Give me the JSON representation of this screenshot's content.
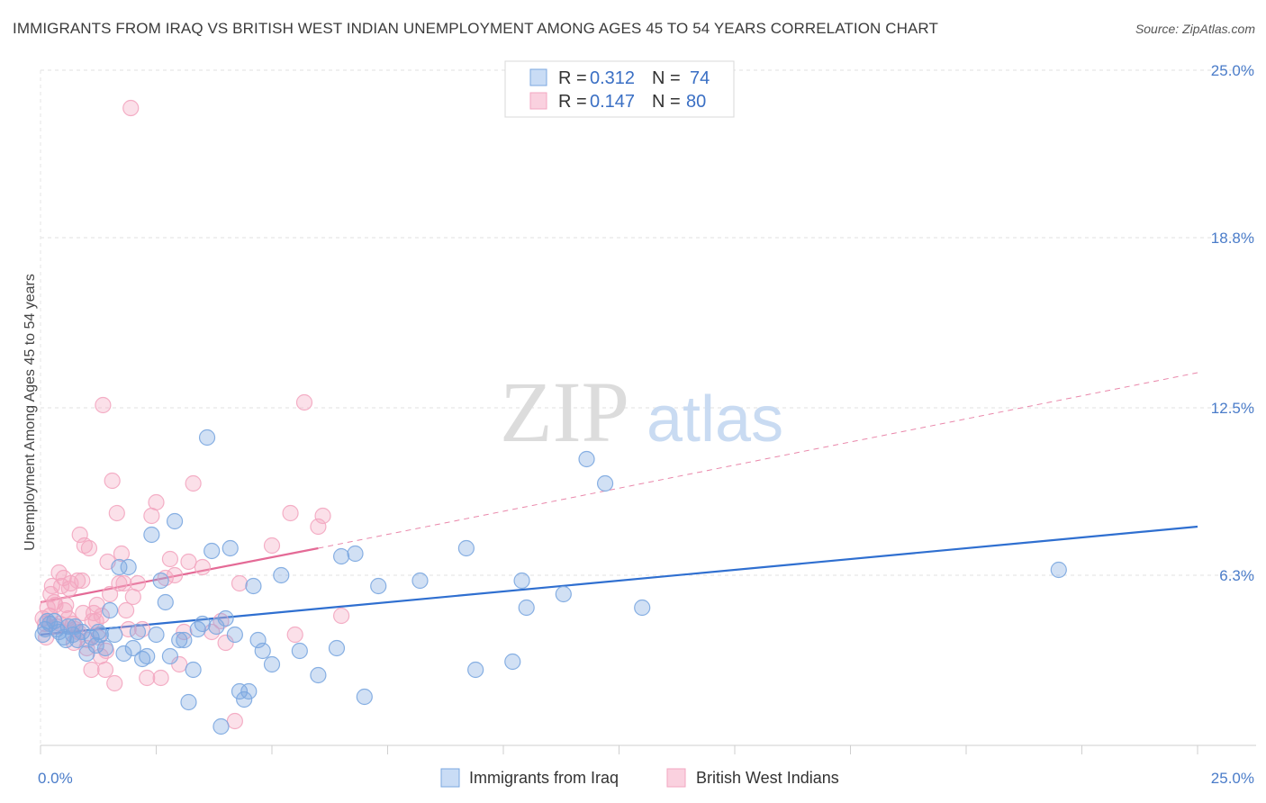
{
  "header": {
    "title": "IMMIGRANTS FROM IRAQ VS BRITISH WEST INDIAN UNEMPLOYMENT AMONG AGES 45 TO 54 YEARS CORRELATION CHART",
    "source": "Source: ZipAtlas.com"
  },
  "watermark": {
    "zip": "ZIP",
    "atlas": "atlas"
  },
  "colors": {
    "blue": "#7ba7e0",
    "blue_line": "#2f6fd0",
    "pink": "#f3a6c0",
    "pink_line": "#e46a96",
    "tick": "#4a7cc9"
  },
  "chart_data": {
    "type": "scatter",
    "title": "IMMIGRANTS FROM IRAQ VS BRITISH WEST INDIAN UNEMPLOYMENT AMONG AGES 45 TO 54 YEARS CORRELATION CHART",
    "xlabel": "",
    "ylabel": "Unemployment Among Ages 45 to 54 years",
    "xlim": [
      0,
      25
    ],
    "ylim": [
      0,
      25
    ],
    "x_tick_labels": [
      "0.0%",
      "25.0%"
    ],
    "y_tick_values": [
      6.3,
      12.5,
      18.8,
      25.0
    ],
    "y_tick_labels": [
      "6.3%",
      "12.5%",
      "18.8%",
      "25.0%"
    ],
    "legend_top": {
      "r_label": "R =",
      "n_label": "N =",
      "entries": [
        {
          "series": "Immigrants from Iraq",
          "r": "0.312",
          "n": "74"
        },
        {
          "series": "British West Indians",
          "r": "0.147",
          "n": "80"
        }
      ]
    },
    "series": [
      {
        "name": "Immigrants from Iraq",
        "color": "#7ba7e0",
        "trend": {
          "x": [
            0,
            25
          ],
          "y": [
            4.1,
            8.1
          ],
          "dashed_after": null
        },
        "points": [
          [
            0.1,
            4.3
          ],
          [
            0.2,
            4.5
          ],
          [
            0.3,
            4.6
          ],
          [
            0.4,
            4.2
          ],
          [
            0.5,
            4.0
          ],
          [
            0.6,
            4.4
          ],
          [
            0.7,
            4.1
          ],
          [
            0.8,
            3.9
          ],
          [
            0.9,
            4.2
          ],
          [
            1.0,
            3.4
          ],
          [
            1.1,
            4.0
          ],
          [
            1.2,
            3.7
          ],
          [
            1.3,
            4.1
          ],
          [
            1.4,
            3.6
          ],
          [
            1.5,
            5.0
          ],
          [
            1.6,
            4.1
          ],
          [
            1.7,
            6.6
          ],
          [
            1.8,
            3.4
          ],
          [
            1.9,
            6.6
          ],
          [
            2.0,
            3.6
          ],
          [
            2.1,
            4.2
          ],
          [
            2.2,
            3.2
          ],
          [
            2.3,
            3.3
          ],
          [
            2.4,
            7.8
          ],
          [
            2.5,
            4.1
          ],
          [
            2.6,
            6.1
          ],
          [
            2.7,
            5.3
          ],
          [
            2.8,
            3.3
          ],
          [
            2.9,
            8.3
          ],
          [
            3.0,
            3.9
          ],
          [
            3.1,
            3.9
          ],
          [
            3.2,
            1.6
          ],
          [
            3.3,
            2.8
          ],
          [
            3.4,
            4.3
          ],
          [
            3.5,
            4.5
          ],
          [
            3.6,
            11.4
          ],
          [
            3.7,
            7.2
          ],
          [
            3.8,
            4.4
          ],
          [
            3.9,
            0.7
          ],
          [
            4.0,
            4.7
          ],
          [
            4.1,
            7.3
          ],
          [
            4.2,
            4.1
          ],
          [
            4.3,
            2.0
          ],
          [
            4.4,
            1.7
          ],
          [
            4.5,
            2.0
          ],
          [
            4.6,
            5.9
          ],
          [
            4.7,
            3.9
          ],
          [
            4.8,
            3.5
          ],
          [
            5.0,
            3.0
          ],
          [
            5.2,
            6.3
          ],
          [
            5.6,
            3.5
          ],
          [
            6.0,
            2.6
          ],
          [
            6.4,
            3.6
          ],
          [
            6.5,
            7.0
          ],
          [
            6.8,
            7.1
          ],
          [
            7.0,
            1.8
          ],
          [
            7.3,
            5.9
          ],
          [
            8.2,
            6.1
          ],
          [
            9.2,
            7.3
          ],
          [
            9.4,
            2.8
          ],
          [
            10.2,
            3.1
          ],
          [
            10.4,
            6.1
          ],
          [
            10.5,
            5.1
          ],
          [
            11.3,
            5.6
          ],
          [
            11.8,
            10.6
          ],
          [
            12.2,
            9.7
          ],
          [
            13.0,
            5.1
          ],
          [
            22.0,
            6.5
          ],
          [
            0.05,
            4.1
          ],
          [
            0.15,
            4.6
          ],
          [
            0.35,
            4.3
          ],
          [
            0.55,
            3.9
          ],
          [
            0.75,
            4.4
          ],
          [
            1.25,
            4.2
          ]
        ]
      },
      {
        "name": "British West Indians",
        "color": "#f3a6c0",
        "trend": {
          "x": [
            0,
            6.0
          ],
          "y": [
            5.3,
            7.3
          ],
          "dash_x": [
            6.0,
            25
          ],
          "dash_y": [
            7.3,
            13.8
          ]
        },
        "points": [
          [
            0.1,
            4.5
          ],
          [
            0.15,
            5.1
          ],
          [
            0.2,
            4.8
          ],
          [
            0.25,
            5.9
          ],
          [
            0.3,
            5.3
          ],
          [
            0.35,
            4.4
          ],
          [
            0.4,
            6.4
          ],
          [
            0.45,
            5.9
          ],
          [
            0.5,
            6.2
          ],
          [
            0.55,
            5.2
          ],
          [
            0.6,
            4.7
          ],
          [
            0.65,
            6.0
          ],
          [
            0.7,
            4.5
          ],
          [
            0.75,
            4.3
          ],
          [
            0.8,
            6.1
          ],
          [
            0.85,
            7.8
          ],
          [
            0.9,
            6.1
          ],
          [
            0.95,
            7.4
          ],
          [
            1.0,
            3.6
          ],
          [
            1.05,
            7.3
          ],
          [
            1.1,
            2.8
          ],
          [
            1.15,
            4.9
          ],
          [
            1.2,
            4.6
          ],
          [
            1.25,
            4.0
          ],
          [
            1.3,
            3.3
          ],
          [
            1.35,
            12.6
          ],
          [
            1.4,
            2.8
          ],
          [
            1.45,
            6.8
          ],
          [
            1.5,
            5.6
          ],
          [
            1.55,
            9.8
          ],
          [
            1.6,
            2.3
          ],
          [
            1.65,
            8.6
          ],
          [
            1.7,
            6.0
          ],
          [
            1.75,
            7.1
          ],
          [
            1.8,
            6.0
          ],
          [
            1.85,
            5.0
          ],
          [
            1.9,
            4.3
          ],
          [
            1.95,
            23.6
          ],
          [
            2.0,
            5.5
          ],
          [
            2.1,
            6.0
          ],
          [
            2.2,
            4.3
          ],
          [
            2.3,
            2.5
          ],
          [
            2.4,
            8.5
          ],
          [
            2.5,
            9.0
          ],
          [
            2.6,
            2.5
          ],
          [
            2.7,
            6.2
          ],
          [
            2.8,
            6.9
          ],
          [
            2.9,
            6.3
          ],
          [
            3.0,
            3.0
          ],
          [
            3.1,
            4.2
          ],
          [
            3.2,
            6.8
          ],
          [
            3.3,
            9.7
          ],
          [
            3.5,
            6.6
          ],
          [
            3.7,
            4.2
          ],
          [
            3.9,
            4.6
          ],
          [
            4.0,
            3.8
          ],
          [
            4.2,
            0.9
          ],
          [
            4.3,
            6.0
          ],
          [
            5.0,
            7.4
          ],
          [
            5.4,
            8.6
          ],
          [
            5.5,
            4.1
          ],
          [
            5.7,
            12.7
          ],
          [
            6.0,
            8.1
          ],
          [
            6.1,
            8.5
          ],
          [
            6.5,
            4.8
          ],
          [
            0.05,
            4.7
          ],
          [
            0.12,
            4.0
          ],
          [
            0.22,
            5.6
          ],
          [
            0.32,
            5.2
          ],
          [
            0.42,
            4.5
          ],
          [
            0.52,
            5.0
          ],
          [
            0.62,
            5.8
          ],
          [
            0.72,
            3.8
          ],
          [
            0.82,
            4.2
          ],
          [
            0.92,
            4.9
          ],
          [
            1.02,
            3.9
          ],
          [
            1.12,
            4.6
          ],
          [
            1.22,
            5.2
          ],
          [
            1.32,
            4.8
          ],
          [
            1.42,
            3.5
          ]
        ]
      }
    ]
  }
}
